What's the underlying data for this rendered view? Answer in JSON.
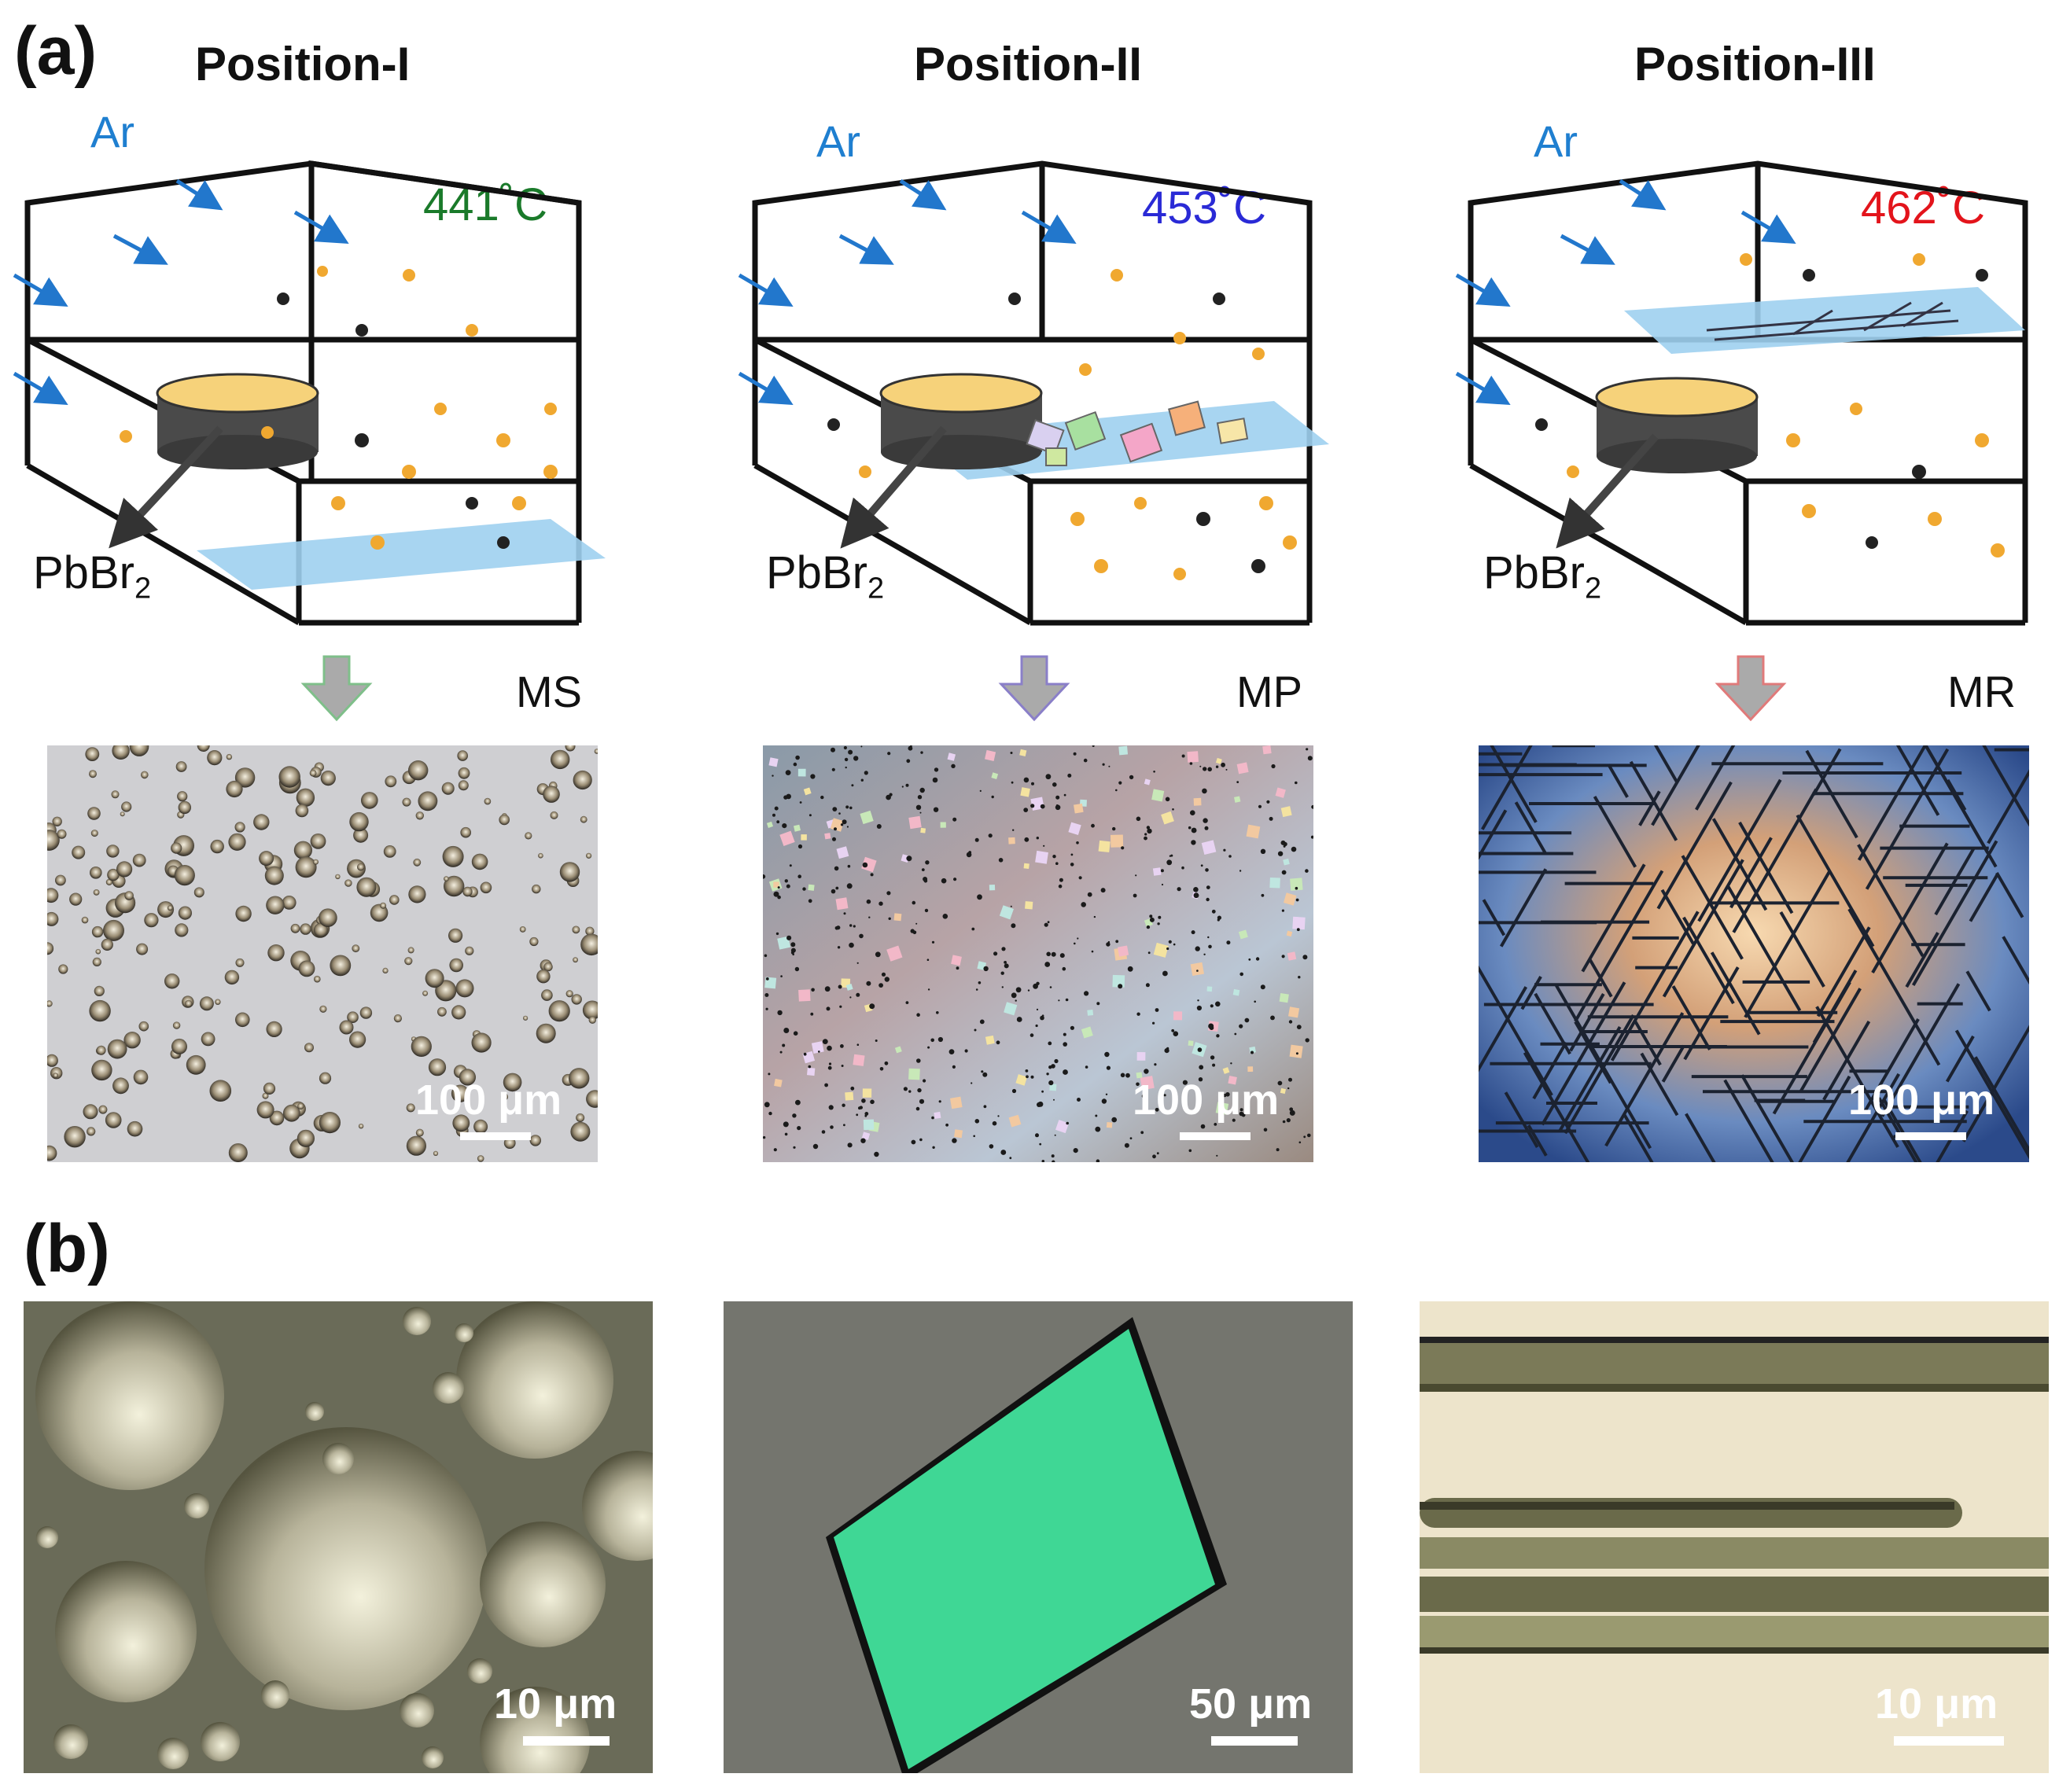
{
  "panel_a": {
    "letter": "(a)",
    "positions": [
      {
        "title": "Position-I",
        "gas": "Ar",
        "temperature": "441˚C",
        "temp_color": "#1a7a2a",
        "source": "PbBr",
        "source_sub": "2",
        "morphology": "MS",
        "arrow_color": "#7fbf8a",
        "scale": "100 μm"
      },
      {
        "title": "Position-II",
        "gas": "Ar",
        "temperature": "453˚C",
        "temp_color": "#2a2ad6",
        "source": "PbBr",
        "source_sub": "2",
        "morphology": "MP",
        "arrow_color": "#8a7fc8",
        "scale": "100 μm"
      },
      {
        "title": "Position-III",
        "gas": "Ar",
        "temperature": "462˚C",
        "temp_color": "#e3141b",
        "source": "PbBr",
        "source_sub": "2",
        "morphology": "MR",
        "arrow_color": "#e07a7a",
        "scale": "100 μm"
      }
    ]
  },
  "panel_b": {
    "letter": "(b)",
    "images": [
      {
        "scale": "10 μm"
      },
      {
        "scale": "50 μm"
      },
      {
        "scale": "10 μm"
      }
    ]
  },
  "colors": {
    "gas_label": "#1f7fd0",
    "flow_arrow": "#2277cc",
    "substrate": "#9fd0ef",
    "particle_gold": "#f0a830",
    "particle_dark": "#222222",
    "crucible": "#4a4a4a"
  }
}
